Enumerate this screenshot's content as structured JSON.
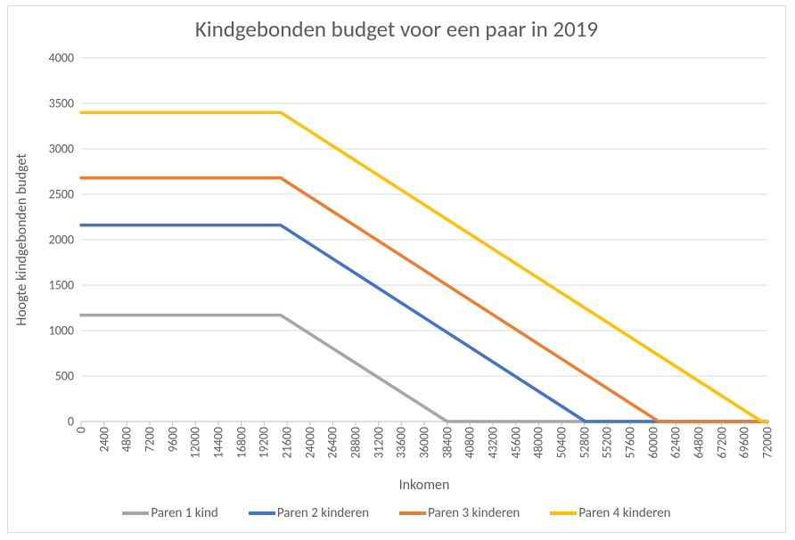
{
  "chart": {
    "type": "line",
    "title": "Kindgebonden budget voor een paar in 2019",
    "title_fontsize": 25,
    "title_color": "#595959",
    "x_axis_label": "Inkomen",
    "y_axis_label": "Hoogte kindgebonden budget",
    "axis_label_fontsize": 16,
    "axis_label_color": "#595959",
    "tick_fontsize": 14,
    "tick_color": "#595959",
    "background_color": "#ffffff",
    "border_color": "#d9d9d9",
    "grid_color": "#d9d9d9",
    "axis_line_color": "#bfbfbf",
    "tick_mark_color": "#bfbfbf",
    "line_width": 3.5,
    "xlim": [
      0,
      72000
    ],
    "ylim": [
      0,
      4000
    ],
    "y_ticks": [
      0,
      500,
      1000,
      1500,
      2000,
      2500,
      3000,
      3500,
      4000
    ],
    "x_ticks": [
      0,
      2400,
      4800,
      7200,
      9600,
      12000,
      14400,
      16800,
      19200,
      21600,
      24000,
      26400,
      28800,
      31200,
      33600,
      36000,
      38400,
      40800,
      43200,
      45600,
      48000,
      50400,
      52800,
      55200,
      57600,
      60000,
      62400,
      64800,
      67200,
      69600,
      72000
    ],
    "series": [
      {
        "name": "Paren 1 kind",
        "color": "#a6a6a6",
        "x": [
          0,
          20940,
          38400,
          72000
        ],
        "y": [
          1170,
          1170,
          0,
          0
        ]
      },
      {
        "name": "Paren 2 kinderen",
        "color": "#4472c4",
        "x": [
          0,
          20940,
          52900,
          72000
        ],
        "y": [
          2160,
          2160,
          0,
          0
        ]
      },
      {
        "name": "Paren 3 kinderen",
        "color": "#ed7d31",
        "x": [
          0,
          20940,
          60600,
          72000
        ],
        "y": [
          2680,
          2680,
          0,
          0
        ]
      },
      {
        "name": "Paren 4 kinderen",
        "color": "#ffc000",
        "x": [
          0,
          20940,
          71400,
          72000
        ],
        "y": [
          3400,
          3400,
          0,
          0
        ]
      }
    ]
  }
}
